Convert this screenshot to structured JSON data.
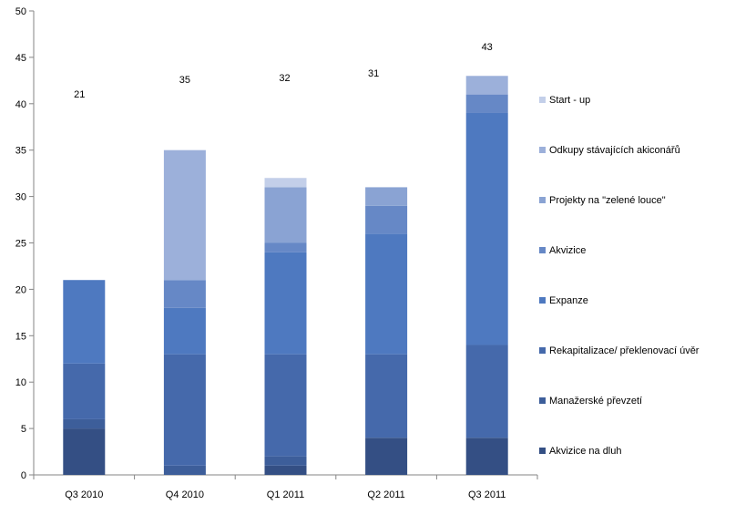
{
  "chart_data": {
    "type": "bar",
    "stacked": true,
    "categories": [
      "Q3 2010",
      "Q4 2010",
      "Q1 2011",
      "Q2 2011",
      "Q3 2011"
    ],
    "ylim": [
      0,
      50
    ],
    "yticks": [
      0,
      5,
      10,
      15,
      20,
      25,
      30,
      35,
      40,
      45,
      50
    ],
    "totals": [
      "21",
      "35",
      "32",
      "31",
      "43"
    ],
    "legend_position": "right",
    "grid": false,
    "series": [
      {
        "name": "Akvizice na dluh",
        "color": "#344f84",
        "values": [
          5,
          0,
          1,
          4,
          4
        ]
      },
      {
        "name": "Manažerské převzetí",
        "color": "#3d5e9a",
        "values": [
          1,
          1,
          1,
          0,
          0
        ]
      },
      {
        "name": "Rekapitalizace/ překlenovací úvěr",
        "color": "#4569ab",
        "values": [
          6,
          12,
          11,
          9,
          10
        ]
      },
      {
        "name": "Expanze",
        "color": "#4e79c0",
        "values": [
          9,
          5,
          11,
          13,
          25
        ]
      },
      {
        "name": "Akvizice",
        "color": "#6688c6",
        "values": [
          0,
          3,
          1,
          3,
          2
        ]
      },
      {
        "name": "Projekty na \"zelené louce\"",
        "color": "#8aa3d3",
        "values": [
          0,
          0,
          6,
          2,
          0
        ]
      },
      {
        "name": "Odkupy stávajících akiconářů",
        "color": "#9cb0da",
        "values": [
          0,
          14,
          0,
          0,
          2
        ]
      },
      {
        "name": "Start - up",
        "color": "#c3cfe9",
        "values": [
          0,
          0,
          1,
          0,
          0
        ]
      }
    ]
  }
}
